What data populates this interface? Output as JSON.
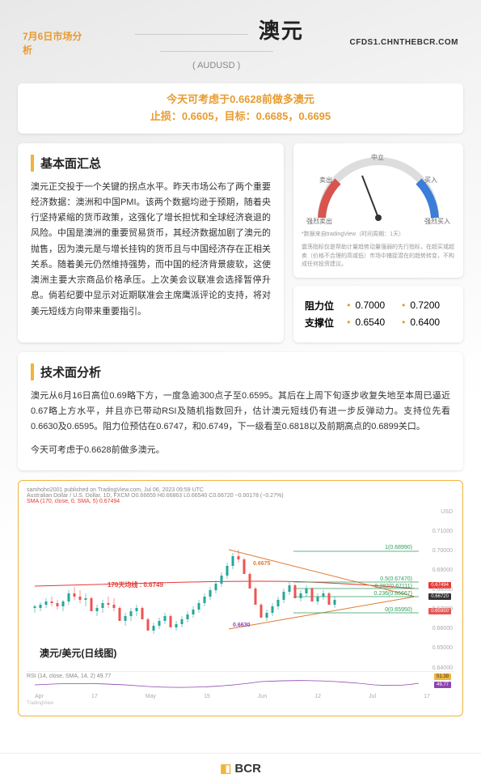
{
  "header": {
    "date": "7月6日市场分析",
    "title": "澳元",
    "subtitle": "( AUDUSD )",
    "site": "CFDS1.CHNTHEBCR.COM"
  },
  "callout": {
    "line1": "今天可考虑于0.6628前做多澳元",
    "line2": "止损：0.6605，目标：0.6685，0.6695"
  },
  "fundamentals": {
    "title": "基本面汇总",
    "body": "澳元正交投于一个关键的拐点水平。昨天市场公布了两个重要经济数据：澳洲和中国PMI。该两个数据均逊于预期，随着央行坚持紧缩的货币政策，这强化了增长担忧和全球经济衰退的风险。中国是澳洲的重要贸易货币，其经济数据加剧了澳元的抛售，因为澳元是与增长挂钩的货币且与中国经济存在正相关关系。随着美元仍然维持强势，而中国的经济背景疲软，这使澳洲主要大宗商品价格承压。上次美会议联准会选择暂停升息。倘若纪要中显示对近期联准会主席鹰派评论的支持，将对美元短线方向带来重要指引。"
  },
  "gauge": {
    "center": "中立",
    "left1": "卖出",
    "right1": "买入",
    "left2": "强烈卖出",
    "right2": "强烈买入",
    "footer1": "*数据来自tradingView（时间周期：1天）",
    "footer2": "震荡指标仅是帮助计量趋势动量强弱的先行指标，在超买或超卖（价格不合理的高或低）市场中捕捉潜在的趋势转变，不构成任何投资建议。"
  },
  "levels": {
    "resistance_label": "阻力位",
    "support_label": "支撑位",
    "r1": "0.7000",
    "r2": "0.7200",
    "s1": "0.6540",
    "s2": "0.6400"
  },
  "technical": {
    "title": "技术面分析",
    "body1": "澳元从6月16日高位0.69略下方，一度急逾300点子至0.6595。其后在上周下旬逐步收复失地至本周已逼近0.67略上方水平，并且亦已带动RSI及随机指数回升，估计澳元短线仍有进一步反弹动力。支持位先看0.6630及0.6595。阻力位预估在0.6747，和0.6749，下一级看至0.6818以及前期高点的0.6899关口。",
    "body2": "今天可考虑于0.6628前做多澳元。"
  },
  "chart": {
    "header": "samhoho2001 published on TradingView.com, Jul 06, 2023 09:59 UTC",
    "pair_line": "Australian Dollar / U.S. Dollar, 1D, FXCM  O0.66659  H0.66863  L0.66540  C0.66720 −0.00178 (−0.27%)",
    "sma_line": "SMA (170, close, 0, SMA, 5) 0.67494",
    "ma_label": "170天均线 : 0.6749",
    "overlay_title": "澳元/美元(日线图)",
    "rsi_label": "RSI (14, close, SMA, 14, 2) 49.77",
    "fib": {
      "f1": "1(0.68990)",
      "f05": "0.5(0.67470)",
      "f0382": "0.382(0.67111)",
      "f0236": "0.236(0.66667)",
      "f0": "0(0.65950)"
    },
    "annot": {
      "p1": "0.6675",
      "p2": "0.6630"
    },
    "price_tags": {
      "ma": "0.67494",
      "cur": "0.66720",
      "low": "0.65950"
    },
    "y_ticks": [
      "USD",
      "0.71000",
      "0.70000",
      "0.69000",
      "0.68000",
      "0.67000",
      "0.66000",
      "0.65000",
      "0.64000"
    ],
    "rsi_vals": {
      "a": "51.39",
      "b": "49.77"
    },
    "x_ticks": [
      "Apr",
      "17",
      "May",
      "15",
      "Jun",
      "12",
      "Jul",
      "17"
    ],
    "tv": "TradingView",
    "colors": {
      "up": "#26a69a",
      "down": "#ef5350",
      "ma": "#e53935",
      "fib_green": "#2e9e5b",
      "fib_orange": "#e07b2f",
      "annot_purple": "#8e44ad"
    }
  },
  "footer": {
    "brand": "BCR"
  }
}
